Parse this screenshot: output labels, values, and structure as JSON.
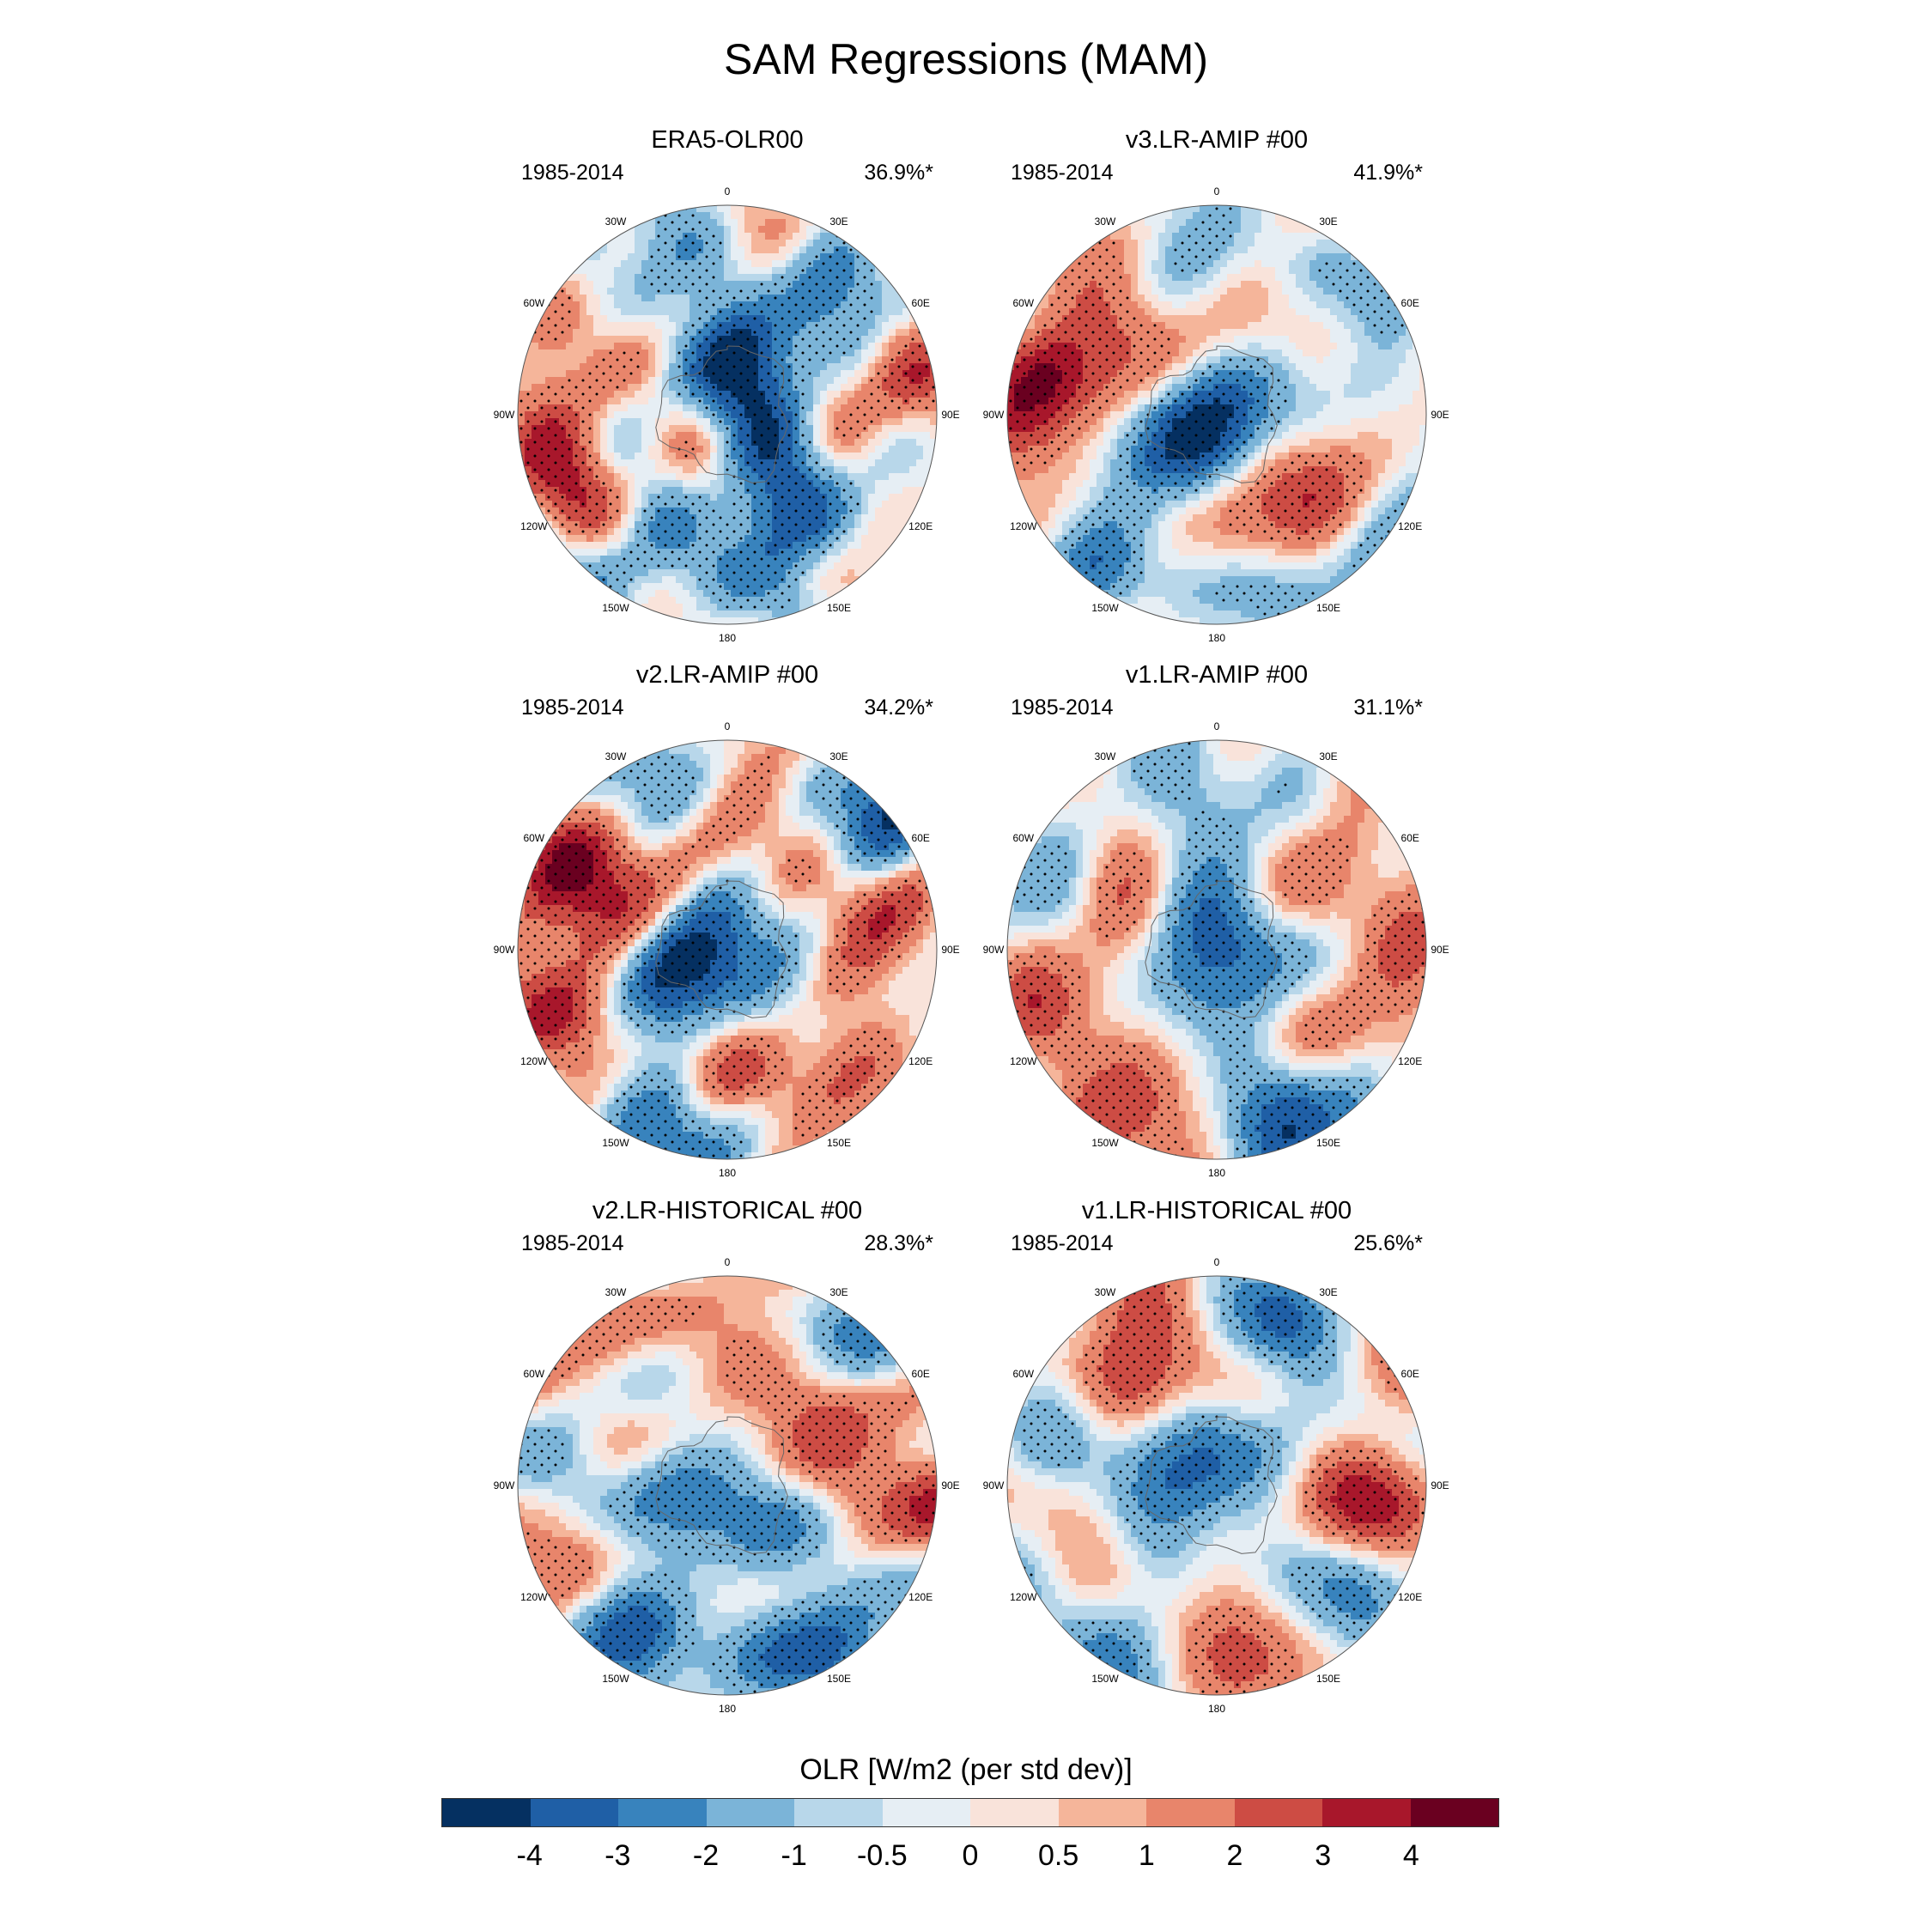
{
  "title": "SAM Regressions (MAM)",
  "panels": [
    {
      "title": "ERA5-OLR00",
      "period": "1985-2014",
      "variance": "36.9%*",
      "seed": 11,
      "blobs": [
        {
          "lon": 0,
          "r": 0.2,
          "v": -2.2
        },
        {
          "lon": 40,
          "r": 0.3,
          "v": -2.4
        },
        {
          "lon": 110,
          "r": 0.3,
          "v": -2.0
        },
        {
          "lon": 160,
          "r": 0.5,
          "v": -1.6
        },
        {
          "lon": -60,
          "r": 0.55,
          "v": 1.8
        },
        {
          "lon": -85,
          "r": 0.9,
          "v": 2.6
        },
        {
          "lon": -115,
          "r": 0.9,
          "v": 2.4
        },
        {
          "lon": -25,
          "r": 0.92,
          "v": -2.6
        },
        {
          "lon": 45,
          "r": 0.75,
          "v": -2.0
        },
        {
          "lon": 80,
          "r": 0.9,
          "v": 1.8
        },
        {
          "lon": 100,
          "r": 0.55,
          "v": 0.8
        },
        {
          "lon": 170,
          "r": 0.85,
          "v": -1.8
        },
        {
          "lon": -150,
          "r": 0.85,
          "v": -1.6
        },
        {
          "lon": -80,
          "r": 0.4,
          "v": -1.4
        },
        {
          "lon": 135,
          "r": 0.7,
          "v": -1.2
        }
      ]
    },
    {
      "title": "v3.LR-AMIP  #00",
      "period": "1985-2014",
      "variance": "41.9%*",
      "seed": 23,
      "blobs": [
        {
          "lon": 0,
          "r": 0.0,
          "v": -2.4
        },
        {
          "lon": 60,
          "r": 0.3,
          "v": -2.2
        },
        {
          "lon": -120,
          "r": 0.3,
          "v": -2.0
        },
        {
          "lon": 180,
          "r": 0.3,
          "v": -1.8
        },
        {
          "lon": -80,
          "r": 0.85,
          "v": 3.2
        },
        {
          "lon": -100,
          "r": 0.9,
          "v": 3.0
        },
        {
          "lon": -40,
          "r": 0.62,
          "v": 2.2
        },
        {
          "lon": 20,
          "r": 0.6,
          "v": 1.8
        },
        {
          "lon": 90,
          "r": 0.65,
          "v": 2.0
        },
        {
          "lon": 170,
          "r": 0.62,
          "v": 2.2
        },
        {
          "lon": 130,
          "r": 0.6,
          "v": 1.8
        },
        {
          "lon": 55,
          "r": 0.95,
          "v": -2.8
        },
        {
          "lon": 160,
          "r": 0.9,
          "v": -2.6
        },
        {
          "lon": -140,
          "r": 0.85,
          "v": -2.0
        },
        {
          "lon": 10,
          "r": 0.9,
          "v": -2.0
        }
      ]
    },
    {
      "title": "v2.LR-AMIP  #00",
      "period": "1985-2014",
      "variance": "34.2%*",
      "seed": 37,
      "blobs": [
        {
          "lon": 0,
          "r": 0.05,
          "v": -1.6
        },
        {
          "lon": -120,
          "r": 0.3,
          "v": -2.6
        },
        {
          "lon": 80,
          "r": 0.3,
          "v": -2.0
        },
        {
          "lon": 150,
          "r": 0.3,
          "v": -1.8
        },
        {
          "lon": -60,
          "r": 0.9,
          "v": 3.4
        },
        {
          "lon": -110,
          "r": 0.9,
          "v": 3.0
        },
        {
          "lon": -70,
          "r": 0.6,
          "v": 2.4
        },
        {
          "lon": 20,
          "r": 0.58,
          "v": 2.0
        },
        {
          "lon": 100,
          "r": 0.6,
          "v": 2.0
        },
        {
          "lon": 170,
          "r": 0.6,
          "v": 2.6
        },
        {
          "lon": 50,
          "r": 0.95,
          "v": -3.4
        },
        {
          "lon": -160,
          "r": 0.9,
          "v": -3.0
        },
        {
          "lon": -20,
          "r": 0.8,
          "v": -1.6
        },
        {
          "lon": 75,
          "r": 0.8,
          "v": 2.4
        },
        {
          "lon": 130,
          "r": 0.8,
          "v": 1.6
        }
      ]
    },
    {
      "title": "v1.LR-AMIP  #00",
      "period": "1985-2014",
      "variance": "31.1%*",
      "seed": 41,
      "blobs": [
        {
          "lon": 0,
          "r": 0.1,
          "v": -1.8
        },
        {
          "lon": -140,
          "r": 0.3,
          "v": -2.2
        },
        {
          "lon": 100,
          "r": 0.3,
          "v": -2.0
        },
        {
          "lon": -60,
          "r": 0.5,
          "v": 2.0
        },
        {
          "lon": 60,
          "r": 0.55,
          "v": 1.8
        },
        {
          "lon": 130,
          "r": 0.6,
          "v": 2.0
        },
        {
          "lon": -110,
          "r": 0.9,
          "v": 2.4
        },
        {
          "lon": -150,
          "r": 0.92,
          "v": 3.0
        },
        {
          "lon": 160,
          "r": 0.85,
          "v": -2.6
        },
        {
          "lon": 140,
          "r": 0.95,
          "v": -2.2
        },
        {
          "lon": -70,
          "r": 0.8,
          "v": -1.8
        },
        {
          "lon": 90,
          "r": 0.85,
          "v": 1.6
        },
        {
          "lon": -10,
          "r": 0.85,
          "v": -1.4
        },
        {
          "lon": 30,
          "r": 0.8,
          "v": -1.4
        }
      ]
    },
    {
      "title": "v2.LR-HISTORICAL  #00",
      "period": "1985-2014",
      "variance": "28.3%*",
      "seed": 53,
      "blobs": [
        {
          "lon": 0,
          "r": 0.1,
          "v": -2.0
        },
        {
          "lon": 120,
          "r": 0.3,
          "v": -1.8
        },
        {
          "lon": -100,
          "r": 0.3,
          "v": -1.8
        },
        {
          "lon": 0,
          "r": 0.5,
          "v": 1.6
        },
        {
          "lon": 60,
          "r": 0.55,
          "v": 1.8
        },
        {
          "lon": 90,
          "r": 0.6,
          "v": 2.0
        },
        {
          "lon": -70,
          "r": 0.55,
          "v": 1.6
        },
        {
          "lon": 90,
          "r": 0.97,
          "v": 3.0
        },
        {
          "lon": 40,
          "r": 0.9,
          "v": -2.8
        },
        {
          "lon": -150,
          "r": 0.9,
          "v": -3.2
        },
        {
          "lon": -120,
          "r": 0.9,
          "v": 2.8
        },
        {
          "lon": -80,
          "r": 0.85,
          "v": -1.8
        },
        {
          "lon": 170,
          "r": 0.75,
          "v": -1.4
        },
        {
          "lon": 150,
          "r": 0.9,
          "v": -1.6
        }
      ]
    },
    {
      "title": "v1.LR-HISTORICAL  #00",
      "period": "1985-2014",
      "variance": "25.6%*",
      "seed": 67,
      "blobs": [
        {
          "lon": 0,
          "r": 0.05,
          "v": -1.8
        },
        {
          "lon": -100,
          "r": 0.3,
          "v": -2.0
        },
        {
          "lon": 60,
          "r": 0.35,
          "v": -1.8
        },
        {
          "lon": -40,
          "r": 0.6,
          "v": 1.6
        },
        {
          "lon": 80,
          "r": 0.6,
          "v": 1.8
        },
        {
          "lon": 110,
          "r": 0.55,
          "v": 1.4
        },
        {
          "lon": -130,
          "r": 0.7,
          "v": 2.0
        },
        {
          "lon": -145,
          "r": 0.9,
          "v": -2.8
        },
        {
          "lon": 170,
          "r": 0.9,
          "v": 3.0
        },
        {
          "lon": 20,
          "r": 0.9,
          "v": -2.8
        },
        {
          "lon": 95,
          "r": 0.95,
          "v": 2.6
        },
        {
          "lon": 130,
          "r": 0.85,
          "v": -2.0
        },
        {
          "lon": -70,
          "r": 0.85,
          "v": -1.8
        },
        {
          "lon": -20,
          "r": 0.85,
          "v": 1.6
        }
      ]
    }
  ],
  "lon_labels": [
    "0",
    "30E",
    "60E",
    "90E",
    "120E",
    "150E",
    "180",
    "150W",
    "120W",
    "90W",
    "60W",
    "30W"
  ],
  "colorbar": {
    "title": "OLR [W/m2 (per std dev)]",
    "colors": [
      "#053061",
      "#1f5fa6",
      "#3883bd",
      "#7bb4d8",
      "#b8d7ea",
      "#e6eef4",
      "#f9e3da",
      "#f5b59a",
      "#e8856b",
      "#cd4c44",
      "#a8172b",
      "#6a0020"
    ],
    "ticks": [
      "-4",
      "-3",
      "-2",
      "-1",
      "-0.5",
      "0",
      "0.5",
      "1",
      "2",
      "3",
      "4"
    ]
  }
}
